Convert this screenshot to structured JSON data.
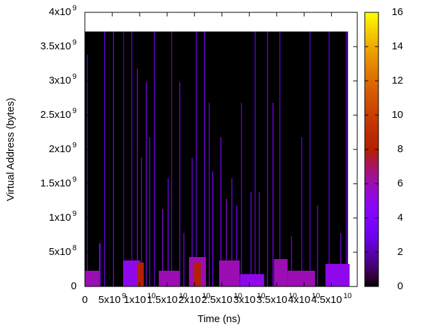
{
  "chart_data": {
    "type": "heatmap",
    "x_label": "Time (ns)",
    "y_label": "Virtual Address (bytes)",
    "xlim": [
      0,
      49700000000.0
    ],
    "ylim": [
      0,
      4000000000.0
    ],
    "cblim": [
      0,
      16
    ],
    "palette_rgbformulae": [
      7,
      5,
      15
    ],
    "xticks": [
      0,
      {
        "value": 5000000000.0,
        "label": "5x10",
        "exponent": "9"
      },
      {
        "value": 10000000000.0,
        "label": "1x10",
        "exponent": "10"
      },
      {
        "value": 15000000000.0,
        "label": "1.5x10",
        "exponent": "10"
      },
      {
        "value": 20000000000.0,
        "label": "2x10",
        "exponent": "10"
      },
      {
        "value": 25000000000.0,
        "label": "2.5x10",
        "exponent": "10"
      },
      {
        "value": 30000000000.0,
        "label": "3x10",
        "exponent": "10"
      },
      {
        "value": 35000000000.0,
        "label": "3.5x10",
        "exponent": "10"
      },
      {
        "value": 40000000000.0,
        "label": "4x10",
        "exponent": "10"
      },
      {
        "value": 45000000000.0,
        "label": "4.5x10",
        "exponent": "10"
      }
    ],
    "yticks": [
      0,
      {
        "value": 500000000.0,
        "label": "5x10",
        "exponent": "8"
      },
      {
        "value": 1000000000.0,
        "label": "1x10",
        "exponent": "9"
      },
      {
        "value": 1500000000.0,
        "label": "1.5x10",
        "exponent": "9"
      },
      {
        "value": 2000000000.0,
        "label": "2x10",
        "exponent": "9"
      },
      {
        "value": 2500000000.0,
        "label": "2.5x10",
        "exponent": "9"
      },
      {
        "value": 3000000000.0,
        "label": "3x10",
        "exponent": "9"
      },
      {
        "value": 3500000000.0,
        "label": "3.5x10",
        "exponent": "9"
      },
      {
        "value": 4000000000.0,
        "label": "4x10",
        "exponent": "9"
      }
    ],
    "cbticks": [
      0,
      2,
      4,
      6,
      8,
      10,
      12,
      14,
      16
    ],
    "background": {
      "x": [
        0,
        48000000000.0
      ],
      "y": [
        0,
        3720000000.0
      ],
      "value": 0
    },
    "streaks": {
      "x": [
        375000000.0,
        3500000000.0,
        5125000000.0,
        7000000000.0,
        8500000000.0,
        9500000000.0,
        10250000000.0,
        11125000000.0,
        11750000000.0,
        12625000000.0,
        14125000000.0,
        15125000000.0,
        15750000000.0,
        17250000000.0,
        18000000000.0,
        19500000000.0,
        20250000000.0,
        21750000000.0,
        22625000000.0,
        23250000000.0,
        24750000000.0,
        25750000000.0,
        26750000000.0,
        27625000000.0,
        28500000000.0,
        30250000000.0,
        31000000000.0,
        31750000000.0,
        33250000000.0,
        34250000000.0,
        35500000000.0,
        37625000000.0,
        39500000000.0,
        41000000000.0,
        42375000000.0,
        44500000000.0,
        46625000000.0,
        47625000000.0,
        0,
        7000000000.0,
        9500000000.0,
        13500000000.0,
        19000000000.0,
        19900000000.0,
        24500000000.0,
        28300000000.0,
        34500000000.0,
        37000000000.0,
        43900000000.0,
        2600000000.0
      ],
      "width": [
        125000000.0,
        125000000.0,
        125000000.0,
        125000000.0,
        125000000.0,
        125000000.0,
        125000000.0,
        125000000.0,
        125000000.0,
        125000000.0,
        125000000.0,
        125000000.0,
        125000000.0,
        125000000.0,
        125000000.0,
        125000000.0,
        125000000.0,
        125000000.0,
        125000000.0,
        125000000.0,
        125000000.0,
        125000000.0,
        125000000.0,
        125000000.0,
        125000000.0,
        125000000.0,
        125000000.0,
        125000000.0,
        125000000.0,
        125000000.0,
        125000000.0,
        125000000.0,
        125000000.0,
        125000000.0,
        125000000.0,
        125000000.0,
        125000000.0,
        125000000.0,
        2600000000.0,
        3100000000.0,
        1250000000.0,
        3750000000.0,
        3100000000.0,
        1250000000.0,
        3750000000.0,
        4400000000.0,
        2500000000.0,
        5000000000.0,
        4400000000.0,
        250000000.0
      ],
      "ymin": [
        0,
        0,
        0,
        0,
        0,
        0,
        0,
        0,
        0,
        0,
        0,
        0,
        0,
        0,
        0,
        0,
        0,
        0,
        0,
        0,
        0,
        0,
        0,
        0,
        0,
        0,
        0,
        0,
        0,
        0,
        0,
        0,
        0,
        0,
        0,
        0,
        0,
        0,
        0,
        0,
        0,
        0,
        0,
        0,
        0,
        0,
        0,
        0,
        0,
        0
      ],
      "ymax": [
        3380000000.0,
        3720000000.0,
        3720000000.0,
        3720000000.0,
        3720000000.0,
        3180000000.0,
        1880000000.0,
        2980000000.0,
        2180000000.0,
        3720000000.0,
        1130000000.0,
        1580000000.0,
        3720000000.0,
        2980000000.0,
        780000000.0,
        1880000000.0,
        3720000000.0,
        3720000000.0,
        2680000000.0,
        1680000000.0,
        2180000000.0,
        1280000000.0,
        1580000000.0,
        1180000000.0,
        2680000000.0,
        1380000000.0,
        3720000000.0,
        1380000000.0,
        3720000000.0,
        2680000000.0,
        3720000000.0,
        730000000.0,
        2180000000.0,
        3720000000.0,
        1180000000.0,
        3720000000.0,
        780000000.0,
        3720000000.0,
        230000000.0,
        380000000.0,
        350000000.0,
        230000000.0,
        430000000.0,
        350000000.0,
        380000000.0,
        180000000.0,
        400000000.0,
        230000000.0,
        330000000.0,
        630000000.0
      ],
      "value": [
        3,
        3,
        4,
        2,
        3,
        4,
        4,
        4,
        3,
        3,
        5,
        4,
        3,
        4,
        4,
        4,
        3,
        4,
        3,
        4,
        4,
        5,
        4,
        4,
        3,
        4,
        3,
        4,
        4,
        4,
        3,
        4,
        3,
        3,
        4,
        3,
        4,
        3,
        6,
        5,
        8,
        6,
        6,
        8,
        6,
        5,
        6,
        6,
        5,
        4
      ]
    }
  }
}
